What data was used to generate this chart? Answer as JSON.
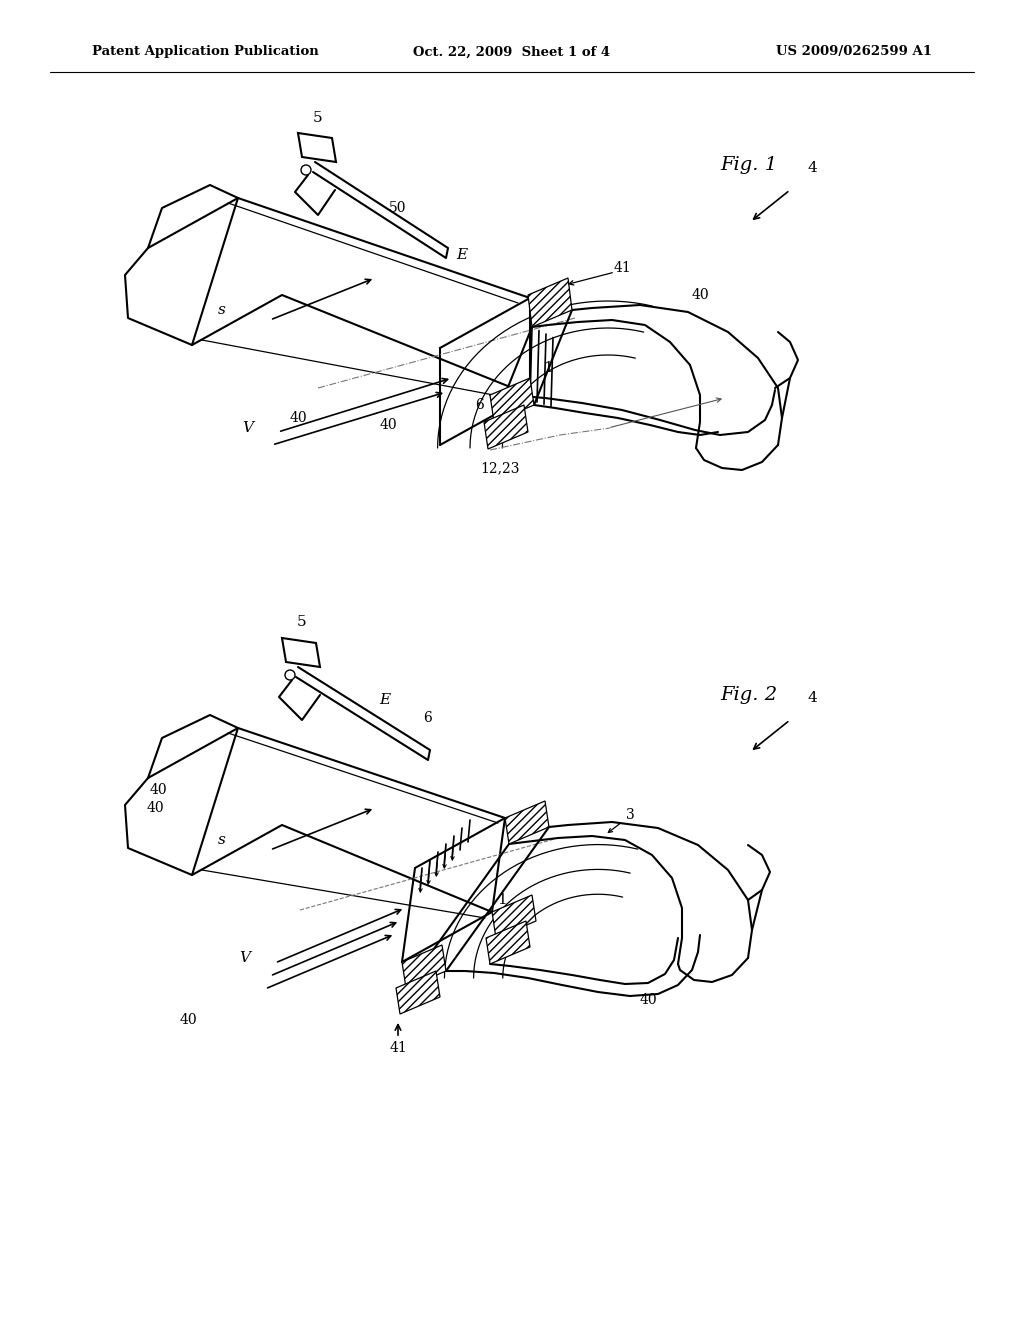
{
  "bg_color": "#ffffff",
  "lc": "#000000",
  "header_left": "Patent Application Publication",
  "header_mid": "Oct. 22, 2009  Sheet 1 of 4",
  "header_right": "US 2009/0262599 A1",
  "fig1_title": "Fig. 1",
  "fig2_title": "Fig. 2",
  "lw_main": 1.5,
  "lw_thin": 0.9,
  "lw_dash": 0.8
}
